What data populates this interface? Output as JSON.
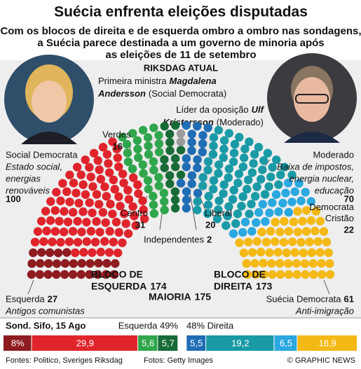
{
  "title": "Suécia enfrenta eleições disputadas",
  "subtitle": [
    "Com os blocos de direita e de esquerda ombro a ombro nas sondagens,",
    "a Suécia parece destinada a um governo de minoria após",
    "as eleições de 11 de setembro"
  ],
  "leaders": [
    {
      "role": "Primeira ministra",
      "first_name": "Magdalena",
      "last_name": "Andersson",
      "party": "(Social Democrata)"
    },
    {
      "role": "Líder da oposição",
      "first_name": "Ulf",
      "last_name": "Kristersson",
      "party": "(Moderado)"
    }
  ],
  "chart_data": [
    {
      "type": "parliament",
      "title": "RIKSDAG ATUAL",
      "series": [
        {
          "name": "Esquerda",
          "color": "#8e1b1f",
          "value": 27,
          "description": [
            "Antigos comunistas"
          ]
        },
        {
          "name": "Social Democrata",
          "color": "#e0242b",
          "value": 100,
          "description": [
            "Estado social,",
            "energias",
            "renováveis"
          ]
        },
        {
          "name": "Centro",
          "color": "#2fa64b",
          "value": 31
        },
        {
          "name": "Verdes",
          "color": "#176b36",
          "value": 16
        },
        {
          "name": "Independentes",
          "color": "#9a9a9a",
          "value": 2
        },
        {
          "name": "Liberal",
          "color": "#1f6db4",
          "value": 20
        },
        {
          "name": "Moderado",
          "color": "#1a9aa6",
          "value": 70,
          "description": [
            "Baixa de impostos,",
            "energia nuclear,",
            "educação"
          ]
        },
        {
          "name": "Democrata Cristão",
          "color": "#2aa8e0",
          "value": 22
        },
        {
          "name": "Suécia Democrata",
          "color": "#f4b915",
          "value": 61,
          "description": [
            "Anti-imigração"
          ]
        }
      ],
      "blocs": [
        {
          "label": [
            "BLOCO DE",
            "ESQUERDA"
          ],
          "value": 174
        },
        {
          "label": [
            "BLOCO DE",
            "DIREITA"
          ],
          "value": 173
        }
      ],
      "majority": {
        "label": "MAIORIA",
        "value": 175
      }
    },
    {
      "type": "bar",
      "title": "Sond. Sifo, 15 Ago",
      "series": [
        {
          "label": "Esquerda 49%",
          "total": 49,
          "values": [
            8,
            29.9,
            5.6,
            5.7
          ],
          "value_labels": [
            "8%",
            "29,9",
            "5,6",
            "5,7"
          ],
          "colors": [
            "#8e1b1f",
            "#e0242b",
            "#2fa64b",
            "#176b36"
          ]
        },
        {
          "label": "48% Direita",
          "total": 48,
          "values": [
            5.5,
            19.2,
            6.5,
            16.9
          ],
          "value_labels": [
            "5,5",
            "19,2",
            "6,5",
            "16,9"
          ],
          "colors": [
            "#1f6db4",
            "#1a9aa6",
            "#2aa8e0",
            "#f4b915"
          ]
        }
      ]
    }
  ],
  "footer": {
    "sources": "Fontes: Politico, Sveriges Riksdag",
    "photos": "Fotos: Getty Images",
    "credit": "© GRAPHIC NEWS"
  }
}
